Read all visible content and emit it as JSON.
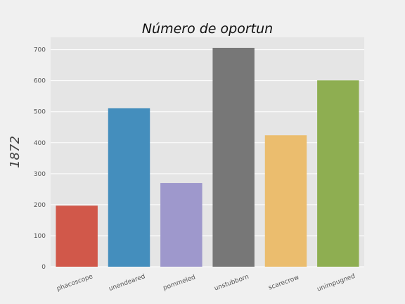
{
  "chart_data": {
    "type": "bar",
    "title": "Número de oportun",
    "xlabel": "",
    "ylabel": "1872",
    "categories": [
      "phacoscope",
      "unendeared",
      "pommeled",
      "unstubborn",
      "scarecrow",
      "unimpugned"
    ],
    "values": [
      197,
      511,
      270,
      706,
      424,
      601
    ],
    "ylim": [
      0,
      740
    ],
    "yticks": [
      0,
      100,
      200,
      300,
      400,
      500,
      600,
      700
    ],
    "grid": true,
    "legend": "none",
    "colors": [
      "#d1584a",
      "#448ebd",
      "#9e98cc",
      "#777777",
      "#ebbd6e",
      "#8eae51"
    ],
    "background": "#e5e5e5"
  }
}
